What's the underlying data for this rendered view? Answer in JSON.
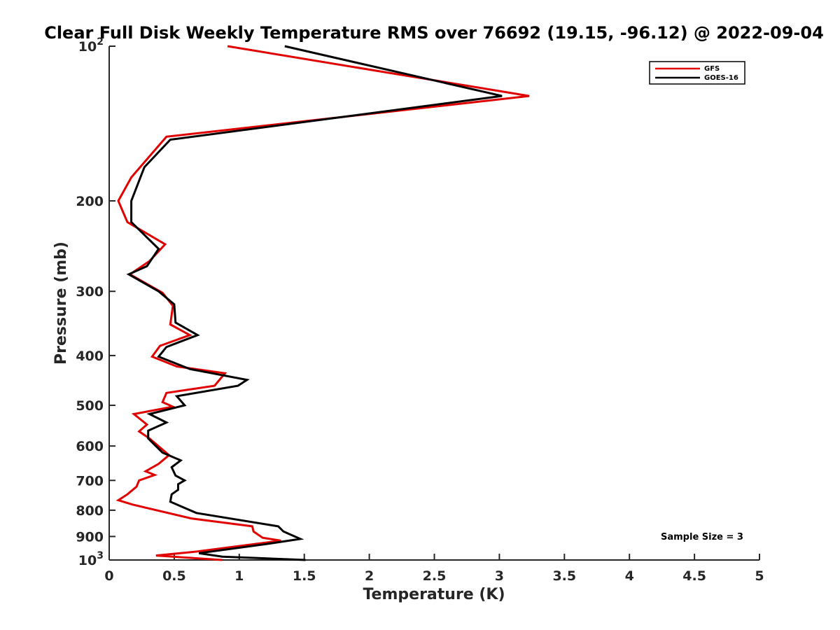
{
  "chart_data": {
    "type": "line",
    "title": "Clear Full Disk Weekly Temperature RMS over 76692 (19.15, -96.12) @ 2022-09-04",
    "xlabel": "Temperature (K)",
    "ylabel": "Pressure (mb)",
    "xlim": [
      0,
      5
    ],
    "ylim": [
      100,
      1000
    ],
    "y_scale": "log",
    "y_reversed": true,
    "x_ticks": [
      "0",
      "0.5",
      "1",
      "1.5",
      "2",
      "2.5",
      "3",
      "3.5",
      "4",
      "4.5",
      "5"
    ],
    "y_ticks": [
      {
        "value": 100,
        "base": "10",
        "exp": "2"
      },
      {
        "value": 200,
        "label": "200"
      },
      {
        "value": 300,
        "label": "300"
      },
      {
        "value": 400,
        "label": "400"
      },
      {
        "value": 500,
        "label": "500"
      },
      {
        "value": 600,
        "label": "600"
      },
      {
        "value": 700,
        "label": "700"
      },
      {
        "value": 800,
        "label": "800"
      },
      {
        "value": 900,
        "label": "900"
      },
      {
        "value": 1000,
        "base": "10",
        "exp": "3"
      }
    ],
    "grid": false,
    "legend_position": "top-right",
    "annotation": "Sample Size = 3",
    "series": [
      {
        "name": "GFS",
        "color": "#e00000",
        "points": [
          [
            0.91,
            100
          ],
          [
            3.23,
            125
          ],
          [
            0.44,
            150
          ],
          [
            0.17,
            180
          ],
          [
            0.07,
            200
          ],
          [
            0.14,
            220
          ],
          [
            0.43,
            243
          ],
          [
            0.31,
            262
          ],
          [
            0.16,
            278
          ],
          [
            0.41,
            302
          ],
          [
            0.49,
            320
          ],
          [
            0.47,
            348
          ],
          [
            0.62,
            365
          ],
          [
            0.39,
            383
          ],
          [
            0.33,
            402
          ],
          [
            0.52,
            420
          ],
          [
            0.89,
            433
          ],
          [
            0.81,
            458
          ],
          [
            0.44,
            473
          ],
          [
            0.41,
            493
          ],
          [
            0.49,
            503
          ],
          [
            0.19,
            520
          ],
          [
            0.29,
            545
          ],
          [
            0.23,
            562
          ],
          [
            0.31,
            580
          ],
          [
            0.46,
            625
          ],
          [
            0.38,
            650
          ],
          [
            0.28,
            672
          ],
          [
            0.35,
            683
          ],
          [
            0.23,
            700
          ],
          [
            0.21,
            720
          ],
          [
            0.14,
            745
          ],
          [
            0.07,
            765
          ],
          [
            0.18,
            780
          ],
          [
            0.63,
            830
          ],
          [
            1.1,
            860
          ],
          [
            1.11,
            880
          ],
          [
            1.18,
            905
          ],
          [
            1.32,
            917
          ],
          [
            0.67,
            963
          ],
          [
            0.36,
            980
          ],
          [
            0.87,
            1000
          ]
        ]
      },
      {
        "name": "GOES-16",
        "color": "#000000",
        "points": [
          [
            1.35,
            100
          ],
          [
            3.02,
            125
          ],
          [
            0.47,
            152
          ],
          [
            0.27,
            172
          ],
          [
            0.17,
            200
          ],
          [
            0.17,
            220
          ],
          [
            0.38,
            248
          ],
          [
            0.29,
            268
          ],
          [
            0.15,
            278
          ],
          [
            0.38,
            300
          ],
          [
            0.5,
            318
          ],
          [
            0.51,
            345
          ],
          [
            0.68,
            365
          ],
          [
            0.44,
            385
          ],
          [
            0.38,
            402
          ],
          [
            0.62,
            425
          ],
          [
            1.06,
            446
          ],
          [
            0.99,
            458
          ],
          [
            0.52,
            480
          ],
          [
            0.58,
            500
          ],
          [
            0.31,
            520
          ],
          [
            0.44,
            540
          ],
          [
            0.3,
            560
          ],
          [
            0.3,
            580
          ],
          [
            0.41,
            618
          ],
          [
            0.55,
            640
          ],
          [
            0.48,
            660
          ],
          [
            0.51,
            685
          ],
          [
            0.58,
            700
          ],
          [
            0.53,
            712
          ],
          [
            0.53,
            730
          ],
          [
            0.48,
            745
          ],
          [
            0.47,
            770
          ],
          [
            0.67,
            810
          ],
          [
            1.3,
            860
          ],
          [
            1.34,
            880
          ],
          [
            1.47,
            910
          ],
          [
            1.22,
            930
          ],
          [
            0.69,
            970
          ],
          [
            0.87,
            985
          ],
          [
            1.51,
            1000
          ]
        ]
      }
    ]
  }
}
